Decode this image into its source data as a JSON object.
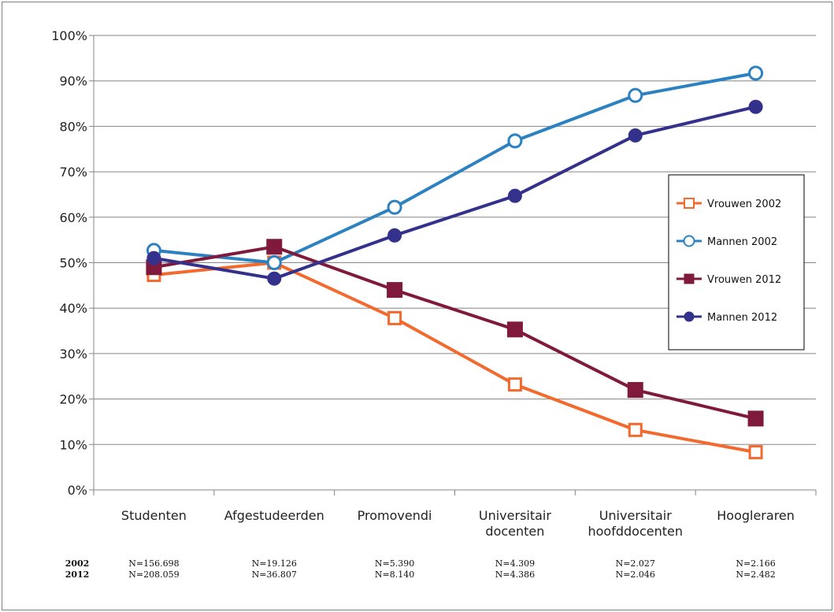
{
  "chart_data": {
    "type": "line",
    "title": "",
    "xlabel": "",
    "ylabel": "",
    "ylim": [
      0,
      100
    ],
    "y_tick_suffix": "%",
    "y_ticks": [
      0,
      10,
      20,
      30,
      40,
      50,
      60,
      70,
      80,
      90,
      100
    ],
    "categories": [
      [
        "Studenten"
      ],
      [
        "Afgestudeerden"
      ],
      [
        "Promovendi"
      ],
      [
        "Universitair",
        "docenten"
      ],
      [
        "Universitair",
        "hoofddocenten"
      ],
      [
        "Hoogleraren"
      ]
    ],
    "grid": "horizontal",
    "legend": "right",
    "series": [
      {
        "name": "Vrouwen 2002",
        "color": "#F26A2E",
        "marker": "open-square",
        "values": [
          47.3,
          50.0,
          37.8,
          23.2,
          13.2,
          8.3
        ]
      },
      {
        "name": "Mannen 2002",
        "color": "#2C82C1",
        "marker": "open-circle",
        "values": [
          52.7,
          50.0,
          62.2,
          76.8,
          86.8,
          91.7
        ]
      },
      {
        "name": "Vrouwen 2012",
        "color": "#7F1A3C",
        "marker": "filled-square",
        "values": [
          49.0,
          53.5,
          44.0,
          35.3,
          22.0,
          15.7
        ]
      },
      {
        "name": "Mannen 2012",
        "color": "#34318C",
        "marker": "filled-circle",
        "values": [
          51.0,
          46.5,
          56.0,
          64.7,
          78.0,
          84.3
        ]
      }
    ],
    "n_table": {
      "rows": [
        {
          "year": "2002",
          "values": [
            "N=156.698",
            "N=19.126",
            "N=5.390",
            "N=4.309",
            "N=2.027",
            "N=2.166"
          ]
        },
        {
          "year": "2012",
          "values": [
            "N=208.059",
            "N=36.807",
            "N=8.140",
            "N=4.386",
            "N=2.046",
            "N=2.482"
          ]
        }
      ]
    }
  }
}
